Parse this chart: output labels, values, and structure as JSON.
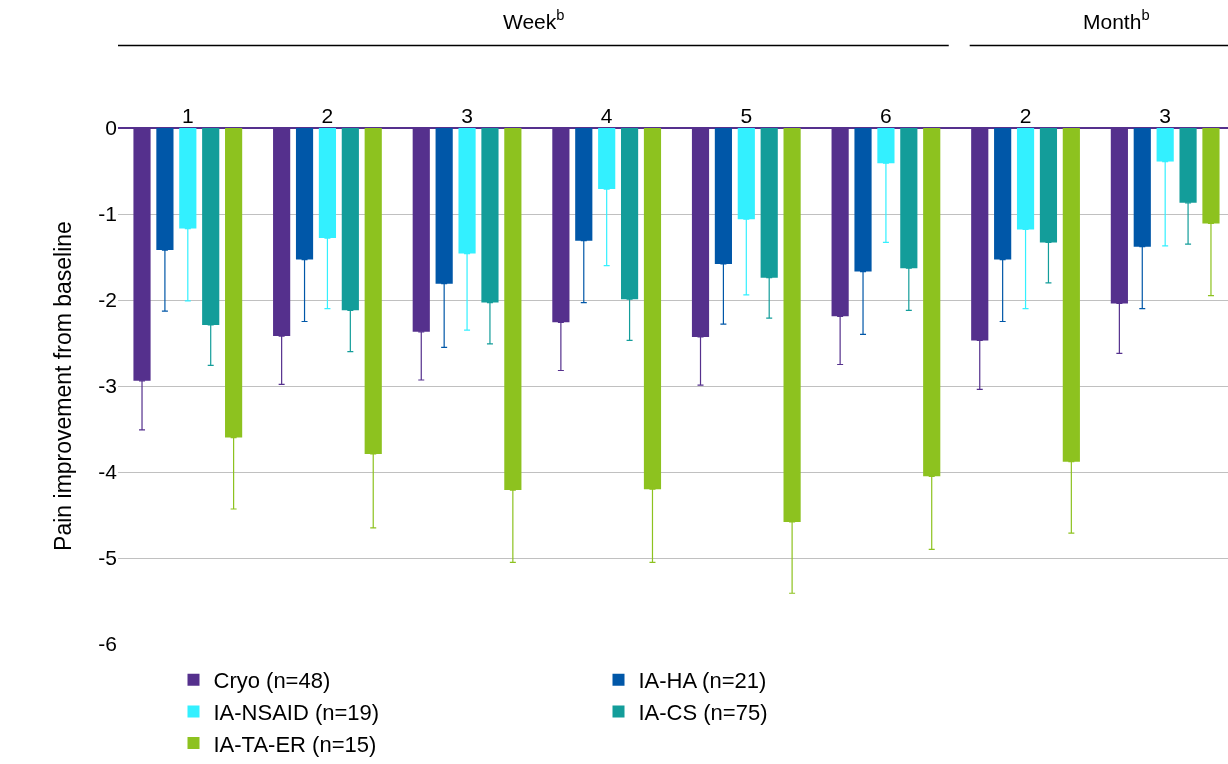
{
  "chart_data": {
    "type": "bar",
    "ylabel": "Pain improvement from baseline",
    "categories": [
      "1",
      "2",
      "3",
      "4",
      "5",
      "6",
      "2",
      "3"
    ],
    "annotations": [
      "Week$^{b}$",
      "Month$^{b}$"
    ],
    "ylim": [
      -6,
      0
    ],
    "yticks": [
      -6,
      -5,
      -4,
      -3,
      -2,
      -1,
      0
    ],
    "grid": "y",
    "legend": "bottom",
    "series": [
      {
        "name": "Cryo (n=48)",
        "color": "#55308d",
        "values": [
          -2.94,
          -2.42,
          -2.37,
          -2.26,
          -2.43,
          -2.19,
          -2.47,
          -2.04
        ],
        "errors": [
          [
            -3.51,
            -2.94
          ],
          [
            -2.98,
            -2.42
          ],
          [
            -2.93,
            -2.37
          ],
          [
            -2.82,
            -2.26
          ],
          [
            -2.99,
            -2.43
          ],
          [
            -2.75,
            -2.19
          ],
          [
            -3.04,
            -2.47
          ],
          [
            -2.62,
            -2.04
          ]
        ]
      },
      {
        "name": "IA-HA (n=21)",
        "color": "#0057a8",
        "values": [
          -1.42,
          -1.53,
          -1.81,
          -1.31,
          -1.58,
          -1.67,
          -1.53,
          -1.38
        ],
        "errors": [
          [
            -2.13,
            -1.42
          ],
          [
            -2.25,
            -1.53
          ],
          [
            -2.55,
            -1.81
          ],
          [
            -2.03,
            -1.31
          ],
          [
            -2.28,
            -1.58
          ],
          [
            -2.4,
            -1.67
          ],
          [
            -2.25,
            -1.53
          ],
          [
            -2.1,
            -1.38
          ]
        ]
      },
      {
        "name": "IA-NSAID (n=19)",
        "color": "#33f0ff",
        "values": [
          -1.17,
          -1.28,
          -1.46,
          -0.71,
          -1.06,
          -0.41,
          -1.18,
          -0.39
        ],
        "errors": [
          [
            -2.01,
            -1.17
          ],
          [
            -2.1,
            -1.28
          ],
          [
            -2.35,
            -1.46
          ],
          [
            -1.6,
            -0.71
          ],
          [
            -1.94,
            -1.06
          ],
          [
            -1.33,
            -0.41
          ],
          [
            -2.1,
            -1.18
          ],
          [
            -1.37,
            -0.39
          ]
        ]
      },
      {
        "name": "IA-CS (n=75)",
        "color": "#139d9a",
        "values": [
          -2.29,
          -2.12,
          -2.03,
          -1.99,
          -1.74,
          -1.63,
          -1.33,
          -0.87
        ],
        "errors": [
          [
            -2.76,
            -2.29
          ],
          [
            -2.6,
            -2.12
          ],
          [
            -2.51,
            -2.03
          ],
          [
            -2.47,
            -1.99
          ],
          [
            -2.21,
            -1.74
          ],
          [
            -2.12,
            -1.63
          ],
          [
            -1.8,
            -1.33
          ],
          [
            -1.35,
            -0.87
          ]
        ]
      },
      {
        "name": "IA-TA-ER (n=15)",
        "color": "#8dc21f",
        "values": [
          -3.6,
          -3.79,
          -4.21,
          -4.2,
          -4.58,
          -4.05,
          -3.88,
          -1.11
        ],
        "errors": [
          [
            -4.43,
            -3.6
          ],
          [
            -4.65,
            -3.79
          ],
          [
            -5.05,
            -4.21
          ],
          [
            -5.05,
            -4.2
          ],
          [
            -5.41,
            -4.58
          ],
          [
            -4.9,
            -4.05
          ],
          [
            -4.71,
            -3.88
          ],
          [
            -1.95,
            -1.11
          ]
        ]
      }
    ]
  }
}
